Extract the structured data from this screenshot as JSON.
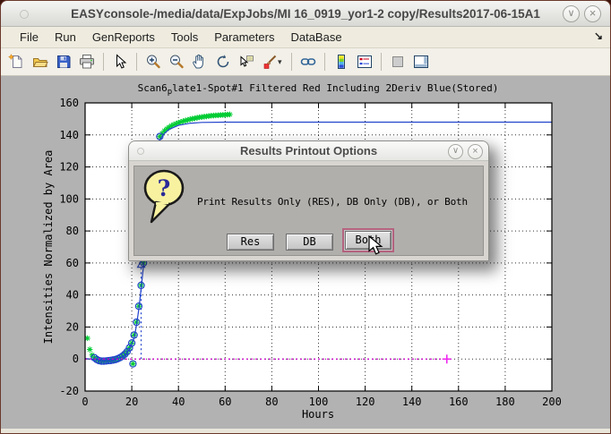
{
  "window": {
    "title": "EASYconsole-/media/data/ExpJobs/MI 16_0919_yor1-2 copy/Results2017-06-15A1",
    "shade_glyph": "∨",
    "close_glyph": "×"
  },
  "menu_bar": {
    "items": [
      "File",
      "Run",
      "GenReports",
      "Tools",
      "Parameters",
      "DataBase"
    ],
    "overflow_glyph": "↘"
  },
  "toolbar": {
    "icons": [
      "new-figure",
      "open-file",
      "save-figure",
      "print-figure",
      "edit-pointer",
      "zoom-in",
      "zoom-out",
      "pan-hand",
      "rotate-3d",
      "data-cursor",
      "brush-data",
      "brush-dropdown-caret",
      "link-plots",
      "insert-colorbar",
      "insert-legend",
      "hide-plot-tools",
      "show-plot-tools"
    ],
    "brush_caret_glyph": "▾"
  },
  "figure": {
    "title_pre": "Scan6",
    "title_sub": "p",
    "title_post": "late1-Spot#1 Filtered Red Including 2Deriv Blue(Stored)"
  },
  "dialog": {
    "title": "Results Printout Options",
    "message": "Print Results Only (RES), DB Only (DB), or Both",
    "icon": "question-balloon",
    "question_glyph": "?",
    "buttons": [
      "Res",
      "DB",
      "Both"
    ],
    "default_button": "Both",
    "shade_glyph": "∨",
    "close_glyph": "×"
  },
  "chart_data": {
    "type": "line",
    "title": "Scan6plate1-Spot#1 Filtered Red Including 2Deriv Blue(Stored)",
    "xlabel": "Hours",
    "ylabel": "Intensities Normalized by Area",
    "xlim": [
      0,
      200
    ],
    "ylim": [
      -20,
      160
    ],
    "xticks": [
      0,
      20,
      40,
      60,
      80,
      100,
      120,
      140,
      160,
      180,
      200
    ],
    "yticks": [
      -20,
      0,
      20,
      40,
      60,
      80,
      100,
      120,
      140,
      160
    ],
    "grid": "dotted",
    "legend": "none",
    "series": [
      {
        "name": "filtered-red-data",
        "type": "scatter",
        "marker": "asterisk",
        "color": "#00cc33",
        "points": [
          [
            1,
            13
          ],
          [
            2,
            6
          ],
          [
            3,
            2.5
          ],
          [
            4,
            0.8
          ],
          [
            5,
            -0.3
          ],
          [
            6,
            -1
          ],
          [
            7,
            -1.3
          ],
          [
            8,
            -1.3
          ],
          [
            9,
            -1.2
          ],
          [
            10,
            -1
          ],
          [
            11,
            -0.9
          ],
          [
            12,
            -0.6
          ],
          [
            13,
            -0.3
          ],
          [
            14,
            0.2
          ],
          [
            15,
            0.9
          ],
          [
            16,
            1.8
          ],
          [
            17,
            3
          ],
          [
            18,
            4.6
          ],
          [
            19,
            7
          ],
          [
            20,
            10
          ],
          [
            20.5,
            -3
          ],
          [
            21,
            15
          ],
          [
            22,
            23
          ],
          [
            23,
            33
          ],
          [
            24,
            46
          ],
          [
            25,
            60
          ],
          [
            26,
            76
          ],
          [
            27,
            92
          ],
          [
            28,
            106
          ],
          [
            29,
            118
          ],
          [
            30,
            127
          ],
          [
            31,
            134
          ],
          [
            32,
            139
          ],
          [
            33,
            141
          ],
          [
            34,
            142.6
          ],
          [
            35,
            143.8
          ],
          [
            36,
            144.8
          ],
          [
            37,
            145.7
          ],
          [
            38,
            146.4
          ],
          [
            39,
            147
          ],
          [
            40,
            147.6
          ],
          [
            41,
            148.1
          ],
          [
            42,
            148.6
          ],
          [
            43,
            149
          ],
          [
            44,
            149.4
          ],
          [
            45,
            149.8
          ],
          [
            46,
            150.1
          ],
          [
            47,
            150.4
          ],
          [
            48,
            150.7
          ],
          [
            49,
            151
          ],
          [
            50,
            151.2
          ],
          [
            51,
            151.4
          ],
          [
            52,
            151.6
          ],
          [
            53,
            151.8
          ],
          [
            54,
            152
          ],
          [
            55,
            152.1
          ],
          [
            56,
            152.2
          ],
          [
            57,
            152.3
          ],
          [
            58,
            152.4
          ],
          [
            59,
            152.5
          ],
          [
            60,
            152.6
          ],
          [
            61,
            152.7
          ],
          [
            62,
            152.8
          ]
        ]
      },
      {
        "name": "fit-circle-markers",
        "type": "scatter",
        "marker": "circle",
        "color": "#2244cc",
        "points": [
          [
            4,
            0.8
          ],
          [
            5,
            -0.3
          ],
          [
            6,
            -1
          ],
          [
            7,
            -1.3
          ],
          [
            8,
            -1.3
          ],
          [
            9,
            -1.2
          ],
          [
            10,
            -1
          ],
          [
            11,
            -0.9
          ],
          [
            12,
            -0.6
          ],
          [
            13,
            -0.3
          ],
          [
            14,
            0.2
          ],
          [
            15,
            0.9
          ],
          [
            16,
            1.8
          ],
          [
            17,
            3
          ],
          [
            18,
            4.6
          ],
          [
            19,
            7
          ],
          [
            20,
            10
          ],
          [
            20.5,
            -3
          ],
          [
            21,
            15
          ],
          [
            22,
            23
          ],
          [
            23,
            33
          ],
          [
            24,
            46
          ],
          [
            25,
            60
          ],
          [
            26,
            76
          ],
          [
            27,
            92
          ],
          [
            28,
            106
          ],
          [
            29,
            118
          ],
          [
            30,
            127
          ],
          [
            31,
            134
          ],
          [
            32,
            139
          ]
        ]
      },
      {
        "name": "deriv-fit-line",
        "type": "line",
        "style": "solid",
        "color": "#2244cc",
        "points": [
          [
            0,
            0.3
          ],
          [
            4,
            -0.2
          ],
          [
            8,
            -0.8
          ],
          [
            12,
            -0.4
          ],
          [
            15,
            0.6
          ],
          [
            17,
            2.2
          ],
          [
            19,
            6
          ],
          [
            21,
            13
          ],
          [
            22,
            21
          ],
          [
            23,
            31
          ],
          [
            24,
            44
          ],
          [
            25,
            58
          ],
          [
            26,
            74
          ],
          [
            27,
            90
          ],
          [
            28,
            104
          ],
          [
            29,
            116
          ],
          [
            30,
            125
          ],
          [
            31,
            132
          ],
          [
            32,
            137
          ],
          [
            34,
            141
          ],
          [
            36,
            143.5
          ],
          [
            40,
            146
          ],
          [
            45,
            147.3
          ],
          [
            50,
            147.8
          ],
          [
            60,
            148
          ],
          [
            200,
            148
          ]
        ]
      },
      {
        "name": "inflection-marker",
        "type": "scatter",
        "marker": "triangle",
        "color": "#2244cc",
        "points": [
          [
            24,
            59
          ]
        ]
      },
      {
        "name": "inflection-vline",
        "type": "line",
        "style": "dotted",
        "color": "#2244cc",
        "points": [
          [
            24,
            0
          ],
          [
            24,
            57
          ]
        ]
      },
      {
        "name": "baseline-zero",
        "type": "line",
        "style": "dotted",
        "color": "#cc00cc",
        "points": [
          [
            0,
            0
          ],
          [
            155,
            0
          ]
        ]
      },
      {
        "name": "baseline-end-marker",
        "type": "scatter",
        "marker": "plus",
        "color": "#ee22ee",
        "points": [
          [
            155,
            0
          ]
        ]
      }
    ]
  }
}
